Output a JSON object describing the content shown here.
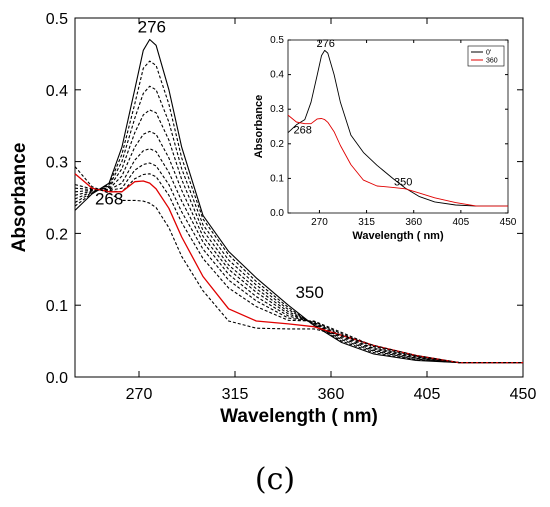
{
  "panel_label": "(c)",
  "chart_data": [
    {
      "type": "line",
      "xlabel": "Wavelength ( nm)",
      "ylabel": "Absorbance",
      "xlim": [
        240,
        450
      ],
      "ylim": [
        0,
        0.5
      ],
      "x_ticks": [
        270,
        315,
        360,
        405,
        450
      ],
      "y_ticks": [
        0.0,
        0.1,
        0.2,
        0.3,
        0.4,
        0.5
      ],
      "y_tick_labels": [
        "0.0",
        "0.1",
        "0.2",
        "0.3",
        "0.4",
        "0.5"
      ],
      "annotations": [
        {
          "text": "276",
          "x": 276,
          "y": 0.48
        },
        {
          "text": "268",
          "x": 256,
          "y": 0.24
        },
        {
          "text": "350",
          "x": 350,
          "y": 0.11
        }
      ],
      "grid": false,
      "series": [
        {
          "style": "solid-black",
          "x": [
            240,
            248,
            256,
            262,
            268,
            272,
            275,
            278,
            284,
            290,
            300,
            312,
            325,
            340,
            352,
            365,
            380,
            400,
            420,
            450
          ],
          "y": [
            0.232,
            0.255,
            0.27,
            0.32,
            0.4,
            0.455,
            0.47,
            0.462,
            0.4,
            0.32,
            0.225,
            0.175,
            0.138,
            0.1,
            0.072,
            0.048,
            0.032,
            0.023,
            0.02,
            0.02
          ]
        },
        {
          "style": "dashed-black",
          "x": [
            240,
            248,
            256,
            262,
            268,
            272,
            275,
            278,
            284,
            290,
            300,
            312,
            325,
            340,
            352,
            365,
            380,
            400,
            420,
            450
          ],
          "y": [
            0.238,
            0.256,
            0.268,
            0.31,
            0.38,
            0.43,
            0.44,
            0.434,
            0.38,
            0.305,
            0.22,
            0.17,
            0.133,
            0.097,
            0.072,
            0.05,
            0.034,
            0.024,
            0.02,
            0.02
          ]
        },
        {
          "style": "dashed-black",
          "x": [
            240,
            248,
            256,
            262,
            268,
            272,
            275,
            278,
            284,
            290,
            300,
            312,
            325,
            340,
            352,
            365,
            380,
            400,
            420,
            450
          ],
          "y": [
            0.243,
            0.257,
            0.266,
            0.3,
            0.36,
            0.395,
            0.405,
            0.4,
            0.355,
            0.29,
            0.212,
            0.163,
            0.128,
            0.094,
            0.073,
            0.052,
            0.036,
            0.025,
            0.02,
            0.02
          ]
        },
        {
          "style": "dashed-black",
          "x": [
            240,
            248,
            256,
            262,
            268,
            272,
            275,
            278,
            284,
            290,
            300,
            312,
            325,
            340,
            352,
            365,
            380,
            400,
            420,
            450
          ],
          "y": [
            0.248,
            0.258,
            0.264,
            0.29,
            0.34,
            0.365,
            0.372,
            0.368,
            0.33,
            0.275,
            0.204,
            0.156,
            0.123,
            0.091,
            0.074,
            0.054,
            0.037,
            0.026,
            0.02,
            0.02
          ]
        },
        {
          "style": "dashed-black",
          "x": [
            240,
            248,
            256,
            262,
            268,
            272,
            275,
            278,
            284,
            290,
            300,
            312,
            325,
            340,
            352,
            365,
            380,
            400,
            420,
            450
          ],
          "y": [
            0.253,
            0.259,
            0.262,
            0.28,
            0.32,
            0.338,
            0.342,
            0.338,
            0.305,
            0.26,
            0.196,
            0.15,
            0.118,
            0.088,
            0.075,
            0.056,
            0.039,
            0.027,
            0.02,
            0.02
          ]
        },
        {
          "style": "dashed-black",
          "x": [
            240,
            248,
            256,
            262,
            268,
            272,
            275,
            278,
            284,
            290,
            300,
            312,
            325,
            340,
            352,
            365,
            380,
            400,
            420,
            450
          ],
          "y": [
            0.258,
            0.26,
            0.261,
            0.27,
            0.302,
            0.315,
            0.318,
            0.314,
            0.285,
            0.245,
            0.188,
            0.143,
            0.112,
            0.085,
            0.076,
            0.058,
            0.04,
            0.028,
            0.02,
            0.02
          ]
        },
        {
          "style": "dashed-black",
          "x": [
            240,
            248,
            256,
            262,
            268,
            272,
            275,
            278,
            284,
            290,
            300,
            312,
            325,
            340,
            352,
            365,
            380,
            400,
            420,
            450
          ],
          "y": [
            0.263,
            0.261,
            0.26,
            0.263,
            0.288,
            0.296,
            0.298,
            0.294,
            0.268,
            0.23,
            0.178,
            0.135,
            0.106,
            0.082,
            0.077,
            0.06,
            0.042,
            0.029,
            0.02,
            0.02
          ]
        },
        {
          "style": "dashed-black",
          "x": [
            240,
            248,
            256,
            262,
            268,
            272,
            275,
            278,
            284,
            290,
            300,
            312,
            325,
            340,
            352,
            365,
            380,
            400,
            420,
            450
          ],
          "y": [
            0.268,
            0.262,
            0.259,
            0.258,
            0.276,
            0.282,
            0.283,
            0.279,
            0.253,
            0.215,
            0.165,
            0.124,
            0.098,
            0.079,
            0.078,
            0.062,
            0.043,
            0.03,
            0.02,
            0.02
          ]
        },
        {
          "style": "solid-red",
          "x": [
            240,
            248,
            256,
            262,
            268,
            272,
            275,
            278,
            284,
            290,
            300,
            312,
            325,
            340,
            352,
            365,
            380,
            400,
            420,
            450
          ],
          "y": [
            0.283,
            0.263,
            0.258,
            0.258,
            0.272,
            0.273,
            0.27,
            0.262,
            0.235,
            0.195,
            0.14,
            0.095,
            0.078,
            0.074,
            0.07,
            0.058,
            0.044,
            0.03,
            0.02,
            0.02
          ]
        },
        {
          "style": "dashed-black",
          "x": [
            240,
            248,
            256,
            262,
            268,
            272,
            275,
            278,
            284,
            290,
            300,
            312,
            325,
            340,
            352,
            365,
            380,
            400,
            420,
            450
          ],
          "y": [
            0.293,
            0.265,
            0.256,
            0.246,
            0.246,
            0.245,
            0.242,
            0.236,
            0.208,
            0.168,
            0.12,
            0.078,
            0.068,
            0.067,
            0.067,
            0.058,
            0.044,
            0.03,
            0.02,
            0.02
          ]
        }
      ]
    },
    {
      "type": "line",
      "inset": true,
      "xlabel": "Wavelength ( nm)",
      "ylabel": "Absorbance",
      "xlim": [
        240,
        450
      ],
      "ylim": [
        0,
        0.5
      ],
      "x_ticks": [
        270,
        315,
        360,
        405,
        450
      ],
      "y_ticks": [
        0.0,
        0.1,
        0.2,
        0.3,
        0.4,
        0.5
      ],
      "y_tick_labels": [
        "0.0",
        "0.1",
        "0.2",
        "0.3",
        "0.4",
        "0.5"
      ],
      "annotations": [
        {
          "text": "276",
          "x": 276,
          "y": 0.48
        },
        {
          "text": "268",
          "x": 254,
          "y": 0.23
        },
        {
          "text": "350",
          "x": 350,
          "y": 0.08
        }
      ],
      "legend": {
        "position": "top-right",
        "entries": [
          {
            "label": "0'",
            "color": "#000000"
          },
          {
            "label": "360",
            "color": "#e00000"
          }
        ]
      },
      "series": [
        {
          "name": "0'",
          "color": "#000000",
          "x": [
            240,
            248,
            256,
            262,
            268,
            272,
            275,
            278,
            284,
            290,
            300,
            312,
            325,
            340,
            352,
            365,
            380,
            400,
            420,
            450
          ],
          "y": [
            0.232,
            0.255,
            0.27,
            0.32,
            0.4,
            0.455,
            0.47,
            0.462,
            0.4,
            0.32,
            0.225,
            0.175,
            0.138,
            0.1,
            0.072,
            0.048,
            0.032,
            0.023,
            0.02,
            0.02
          ]
        },
        {
          "name": "360",
          "color": "#e00000",
          "x": [
            240,
            248,
            256,
            262,
            268,
            272,
            275,
            278,
            284,
            290,
            300,
            312,
            325,
            340,
            352,
            365,
            380,
            400,
            420,
            450
          ],
          "y": [
            0.283,
            0.263,
            0.258,
            0.258,
            0.272,
            0.273,
            0.27,
            0.262,
            0.235,
            0.195,
            0.14,
            0.095,
            0.078,
            0.074,
            0.07,
            0.058,
            0.044,
            0.03,
            0.02,
            0.02
          ]
        }
      ]
    }
  ]
}
